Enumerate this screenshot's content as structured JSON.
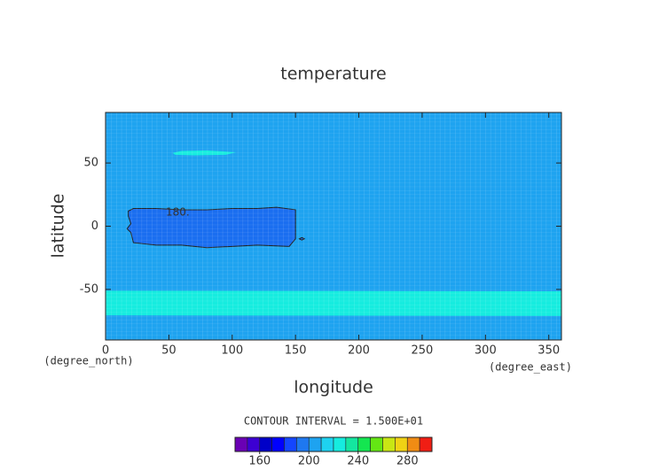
{
  "chart_data": {
    "type": "contour",
    "title": "temperature",
    "xlabel": "longitude",
    "ylabel": "latitude",
    "xunit": "(degree_east)",
    "yunit": "(degree_north)",
    "note": "CONTOUR INTERVAL = 1.500E+01",
    "xlim": [
      0,
      360
    ],
    "ylim": [
      -90,
      90
    ],
    "xticks": [
      0,
      50,
      100,
      150,
      200,
      250,
      300,
      350
    ],
    "yticks": [
      -50,
      0,
      50
    ],
    "background_color": "#1ea3f0",
    "regions": [
      {
        "color": "#16ecdf",
        "outline": false,
        "lon": [
          0,
          360,
          360,
          0
        ],
        "lat": [
          -51,
          -51.5,
          -71,
          -70.5
        ]
      },
      {
        "color": "#16ecdf",
        "outline": false,
        "lon": [
          53,
          60,
          80,
          103,
          95,
          70,
          55
        ],
        "lat": [
          58,
          59.5,
          60,
          58.5,
          56.5,
          56,
          56.5
        ]
      },
      {
        "color": "#1a6ef0",
        "outline": true,
        "lon": [
          18,
          22,
          40,
          60,
          80,
          100,
          120,
          135,
          150,
          150,
          145,
          120,
          100,
          80,
          60,
          40,
          22,
          20,
          17,
          20,
          18
        ],
        "lat": [
          12,
          14,
          14,
          13,
          13,
          14,
          14,
          15,
          13,
          -10,
          -16,
          -15,
          -16,
          -17,
          -15,
          -15,
          -13,
          -5,
          -2,
          2,
          8
        ]
      },
      {
        "color": "#1a6ef0",
        "outline": true,
        "lon": [
          153,
          155,
          157,
          155
        ],
        "lat": [
          -10,
          -9,
          -10,
          -11
        ]
      }
    ],
    "contour_labels": [
      {
        "text": "180.",
        "lon": 57,
        "lat": 11
      }
    ],
    "colorbar": {
      "lim": [
        140,
        300
      ],
      "ticks": [
        160,
        200,
        240,
        280
      ],
      "colors": [
        "#6a00b4",
        "#3c00d2",
        "#0000c8",
        "#0000ff",
        "#1446ff",
        "#1e78f0",
        "#1ea3f0",
        "#1ed2f0",
        "#16ecdf",
        "#14e6a0",
        "#14e650",
        "#64e614",
        "#c8e614",
        "#f0d214",
        "#f08c14",
        "#f01e14"
      ]
    }
  }
}
